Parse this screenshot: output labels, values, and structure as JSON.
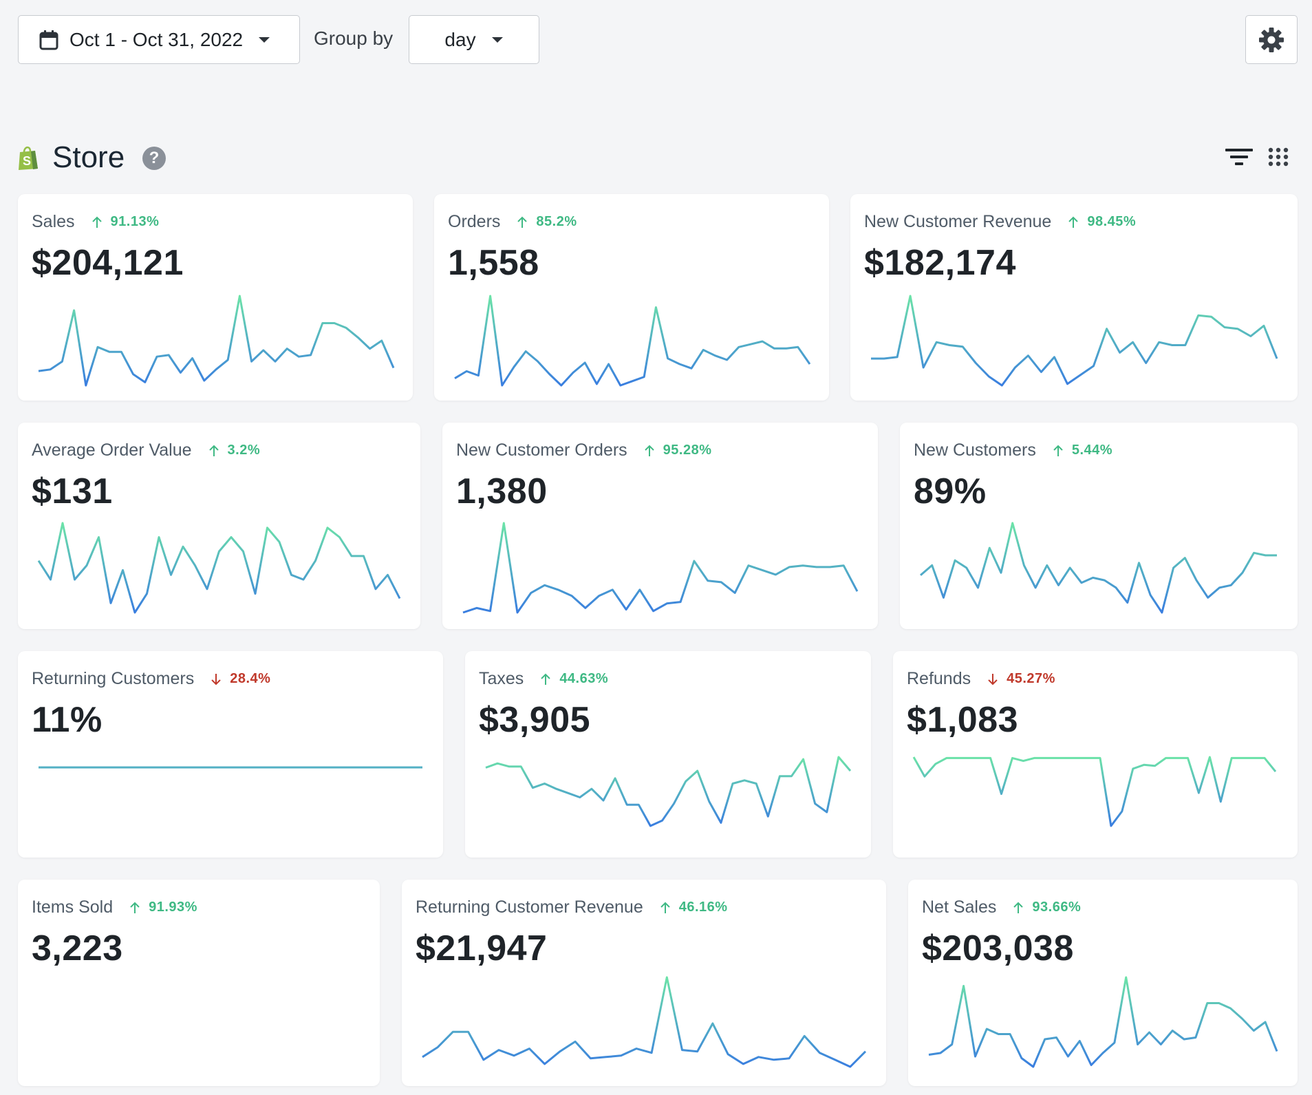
{
  "toolbar": {
    "date_range": "Oct 1 - Oct 31, 2022",
    "group_by_label": "Group by",
    "group_by_value": "day",
    "icons": {
      "calendar": "calendar-icon",
      "caret": "caret-down-icon",
      "settings": "gear-icon"
    }
  },
  "section": {
    "title": "Store",
    "icons": {
      "logo": "shopify-bag-icon",
      "help": "help-icon",
      "filter": "filter-icon",
      "layout": "grid-dots-icon"
    },
    "help_glyph": "?"
  },
  "colors": {
    "up": "#3fb984",
    "down": "#c0392b",
    "spark_start": "#6ce3a8",
    "spark_end": "#3a7ee0"
  },
  "metrics": [
    {
      "label": "Sales",
      "change": "91.13%",
      "direction": "up",
      "value": "$204,121",
      "trend": [
        30,
        31,
        36,
        68,
        21,
        45,
        42,
        42,
        28,
        23,
        39,
        40,
        29,
        38,
        24,
        31,
        37,
        77,
        36,
        43,
        36,
        44,
        39,
        40,
        60,
        60,
        57,
        51,
        44,
        49,
        32
      ]
    },
    {
      "label": "Orders",
      "change": "85.2%",
      "direction": "up",
      "value": "1,558",
      "trend": [
        30,
        35,
        32,
        88,
        25,
        38,
        49,
        42,
        33,
        25,
        34,
        41,
        26,
        40,
        25,
        28,
        31,
        80,
        44,
        40,
        37,
        50,
        46,
        43,
        52,
        54,
        56,
        51,
        51,
        52,
        40
      ]
    },
    {
      "label": "New Customer Revenue",
      "change": "98.45%",
      "direction": "up",
      "value": "$182,174",
      "trend": [
        38,
        38,
        39,
        80,
        32,
        49,
        47,
        46,
        35,
        26,
        20,
        32,
        40,
        29,
        39,
        21,
        27,
        33,
        58,
        42,
        49,
        35,
        49,
        47,
        47,
        67,
        66,
        59,
        58,
        53,
        60,
        38
      ]
    },
    {
      "label": "Average Order Value",
      "change": "3.2%",
      "direction": "up",
      "value": "$131",
      "trend": [
        40,
        36,
        48,
        36,
        39,
        45,
        31,
        38,
        29,
        33,
        45,
        37,
        43,
        39,
        34,
        42,
        45,
        42,
        33,
        47,
        44,
        37,
        36,
        40,
        47,
        45,
        41,
        41,
        34,
        37,
        32
      ]
    },
    {
      "label": "New Customer Orders",
      "change": "95.28%",
      "direction": "up",
      "value": "1,380",
      "trend": [
        22,
        25,
        23,
        81,
        22,
        35,
        40,
        37,
        33,
        25,
        33,
        37,
        24,
        37,
        23,
        28,
        29,
        56,
        43,
        42,
        35,
        53,
        50,
        47,
        52,
        53,
        52,
        52,
        53,
        36
      ]
    },
    {
      "label": "New Customers",
      "change": "5.44%",
      "direction": "up",
      "value": "89%",
      "trend": [
        47,
        51,
        38,
        53,
        50,
        42,
        58,
        48,
        68,
        51,
        42,
        51,
        43,
        50,
        44,
        46,
        45,
        42,
        36,
        52,
        39,
        32,
        50,
        54,
        45,
        38,
        42,
        43,
        48,
        56,
        55,
        55
      ]
    },
    {
      "label": "Returning Customers",
      "change": "28.4%",
      "direction": "down",
      "value": "11%",
      "trend": [
        50,
        50,
        50,
        50,
        50,
        50,
        50,
        50,
        50,
        50,
        50,
        50,
        50,
        50,
        50,
        50,
        50,
        50,
        50,
        50,
        50,
        50,
        50,
        50,
        50,
        50,
        50,
        50,
        50,
        50,
        50
      ]
    },
    {
      "label": "Taxes",
      "change": "44.63%",
      "direction": "up",
      "value": "$3,905",
      "trend": [
        70,
        74,
        71,
        71,
        51,
        55,
        50,
        46,
        42,
        50,
        39,
        60,
        35,
        35,
        15,
        20,
        36,
        57,
        67,
        38,
        18,
        55,
        58,
        55,
        24,
        62,
        62,
        78,
        36,
        28,
        80,
        67
      ]
    },
    {
      "label": "Refunds",
      "change": "45.27%",
      "direction": "down",
      "value": "$1,083",
      "trend": [
        68,
        48,
        61,
        67,
        67,
        67,
        67,
        67,
        30,
        67,
        64,
        67,
        67,
        67,
        67,
        67,
        67,
        67,
        -3,
        12,
        56,
        60,
        59,
        67,
        67,
        67,
        31,
        68,
        22,
        67,
        67,
        67,
        67,
        53
      ]
    },
    {
      "label": "Items Sold",
      "change": "91.93%",
      "direction": "up",
      "value": "3,223",
      "trend": []
    },
    {
      "label": "Returning Customer Revenue",
      "change": "46.16%",
      "direction": "up",
      "value": "$21,947",
      "trend": [
        30,
        37,
        48,
        48,
        28,
        35,
        31,
        36,
        25,
        34,
        41,
        29,
        30,
        31,
        36,
        33,
        87,
        35,
        34,
        54,
        32,
        25,
        30,
        28,
        29,
        45,
        33,
        28,
        23,
        34
      ]
    },
    {
      "label": "Net Sales",
      "change": "93.66%",
      "direction": "up",
      "value": "$203,038",
      "trend": [
        30,
        31,
        36,
        70,
        29,
        45,
        42,
        42,
        28,
        23,
        39,
        40,
        29,
        38,
        24,
        31,
        37,
        75,
        36,
        43,
        36,
        44,
        39,
        40,
        60,
        60,
        57,
        51,
        44,
        49,
        32
      ]
    }
  ]
}
